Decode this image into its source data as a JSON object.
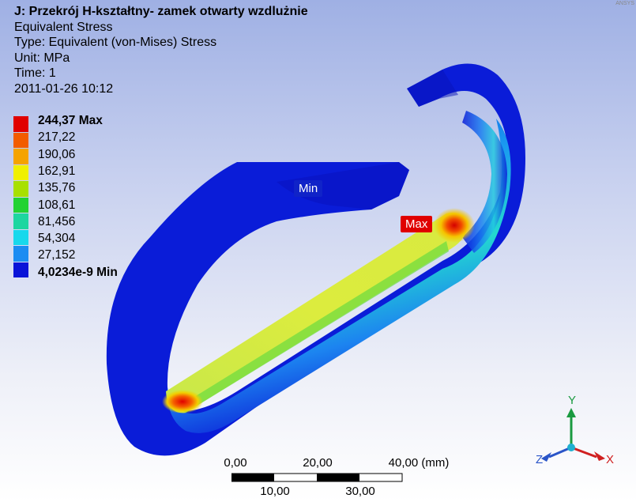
{
  "header": {
    "title": "J: Przekrój H-kształtny- zamek otwarty wzdlużnie",
    "result": "Equivalent Stress",
    "type": "Type: Equivalent (von-Mises) Stress",
    "unit": "Unit: MPa",
    "time": "Time: 1",
    "date": "2011-01-26 10:12"
  },
  "legend": {
    "entries": [
      {
        "label": "244,37 Max",
        "color": "#e00000",
        "bold": true
      },
      {
        "label": "217,22",
        "color": "#f25c00",
        "bold": false
      },
      {
        "label": "190,06",
        "color": "#f5a300",
        "bold": false
      },
      {
        "label": "162,91",
        "color": "#f0f000",
        "bold": false
      },
      {
        "label": "135,76",
        "color": "#a8e000",
        "bold": false
      },
      {
        "label": "108,61",
        "color": "#22d232",
        "bold": false
      },
      {
        "label": "81,456",
        "color": "#1dd6a0",
        "bold": false
      },
      {
        "label": "54,304",
        "color": "#18d8ec",
        "bold": false
      },
      {
        "label": "27,152",
        "color": "#1c8cf2",
        "bold": false
      },
      {
        "label": "4,0234e-9 Min",
        "color": "#0a14d8",
        "bold": true
      }
    ]
  },
  "probes": {
    "min_label": "Min",
    "max_label": "Max"
  },
  "scale_bar": {
    "top_labels": [
      "0,00",
      "20,00",
      "40,00 (mm)"
    ],
    "bottom_labels": [
      "10,00",
      "30,00"
    ]
  },
  "triad": {
    "x_label": "X",
    "y_label": "Y",
    "z_label": "Z"
  },
  "watermark": "ANSYS"
}
